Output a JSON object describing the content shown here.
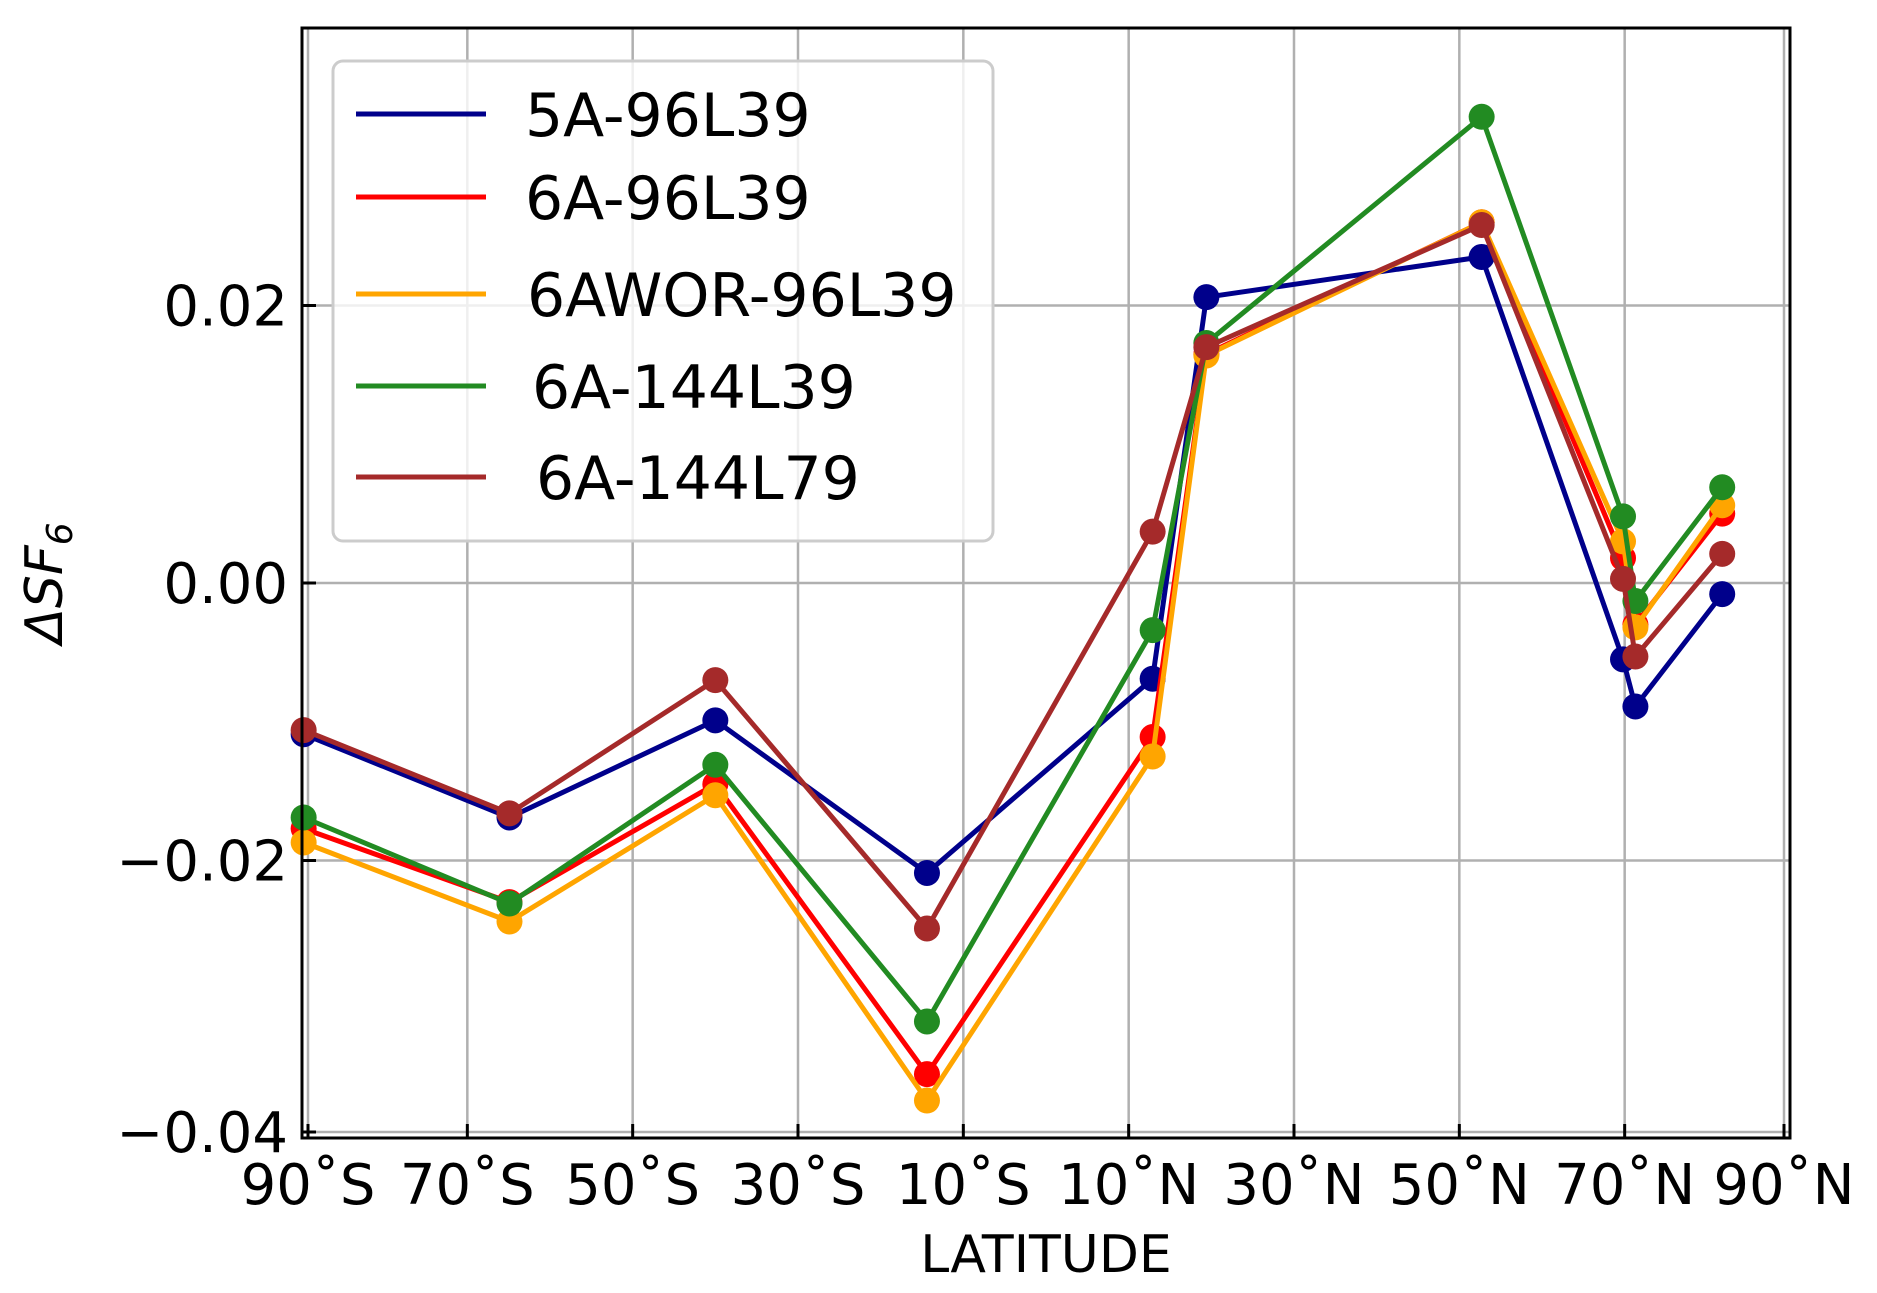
{
  "chart_data": {
    "type": "line",
    "xlabel": "LATITUDE",
    "ylabel": "ΔSF",
    "ylabel_subscript": "6",
    "xlim": [
      -90,
      90
    ],
    "ylim": [
      -0.04,
      0.04
    ],
    "x_ticks": [
      -90,
      -70,
      -50,
      -30,
      -10,
      10,
      30,
      50,
      70,
      90
    ],
    "x_tick_labels": [
      "90˚S",
      "70˚S",
      "50˚S",
      "30˚S",
      "10˚S",
      "10˚N",
      "30˚N",
      "50˚N",
      "70˚N",
      "90˚N"
    ],
    "y_ticks": [
      -0.04,
      -0.02,
      0.0,
      0.02
    ],
    "y_tick_labels": [
      "−0.04",
      "−0.02",
      "0.00",
      "0.02"
    ],
    "grid": true,
    "legend_position": "top-left",
    "series": [
      {
        "name": "5A-96L39",
        "color": "#00008b",
        "points": [
          [
            -89.8,
            -0.0109
          ],
          [
            -64.9,
            -0.0169
          ],
          [
            -40.0,
            -0.0099
          ],
          [
            -14.4,
            -0.0209
          ],
          [
            12.9,
            -0.0069
          ],
          [
            19.4,
            0.0206
          ],
          [
            52.7,
            0.0235
          ],
          [
            69.8,
            -0.0055
          ],
          [
            71.3,
            -0.0089
          ],
          [
            81.8,
            -0.0008
          ]
        ]
      },
      {
        "name": "6A-96L39",
        "color": "#ff0000",
        "points": [
          [
            -89.8,
            -0.0177
          ],
          [
            -64.9,
            -0.023
          ],
          [
            -40.0,
            -0.0145
          ],
          [
            -14.4,
            -0.0354
          ],
          [
            12.9,
            -0.0111
          ],
          [
            19.4,
            0.0165
          ],
          [
            52.7,
            0.026
          ],
          [
            69.8,
            0.0018
          ],
          [
            71.3,
            -0.003
          ],
          [
            81.8,
            0.005
          ]
        ]
      },
      {
        "name": "6AWOR-96L39",
        "color": "#ffa500",
        "points": [
          [
            -89.8,
            -0.0187
          ],
          [
            -64.9,
            -0.0244
          ],
          [
            -40.0,
            -0.0153
          ],
          [
            -14.4,
            -0.0373
          ],
          [
            12.9,
            -0.0125
          ],
          [
            19.4,
            0.0164
          ],
          [
            52.7,
            0.026
          ],
          [
            69.8,
            0.003
          ],
          [
            71.3,
            -0.0032
          ],
          [
            81.8,
            0.0056
          ]
        ]
      },
      {
        "name": "6A-144L39",
        "color": "#228b22",
        "points": [
          [
            -89.8,
            -0.0169
          ],
          [
            -64.9,
            -0.0231
          ],
          [
            -40.0,
            -0.0131
          ],
          [
            -14.4,
            -0.0316
          ],
          [
            12.9,
            -0.0034
          ],
          [
            19.4,
            0.0173
          ],
          [
            52.7,
            0.0336
          ],
          [
            69.8,
            0.0048
          ],
          [
            71.3,
            -0.0013
          ],
          [
            81.8,
            0.0069
          ]
        ]
      },
      {
        "name": "6A-144L79",
        "color": "#a52a2a",
        "points": [
          [
            -89.8,
            -0.0106
          ],
          [
            -64.9,
            -0.0166
          ],
          [
            -40.0,
            -0.007
          ],
          [
            -14.4,
            -0.0249
          ],
          [
            12.9,
            0.0037
          ],
          [
            19.4,
            0.017
          ],
          [
            52.7,
            0.0258
          ],
          [
            69.8,
            0.0003
          ],
          [
            71.3,
            -0.0053
          ],
          [
            81.8,
            0.0021
          ]
        ]
      }
    ]
  }
}
